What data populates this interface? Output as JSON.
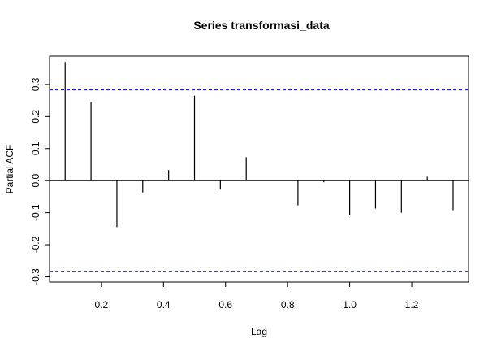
{
  "chart_data": {
    "type": "bar",
    "title": "Series  transformasi_data",
    "xlabel": "Lag",
    "ylabel": "Partial ACF",
    "xlim": [
      0.033,
      1.383
    ],
    "ylim": [
      -0.3165,
      0.3885
    ],
    "x_ticks": [
      0.2,
      0.4,
      0.6,
      0.8,
      1.0,
      1.2
    ],
    "x_tick_labels": [
      "0.2",
      "0.4",
      "0.6",
      "0.8",
      "1.0",
      "1.2"
    ],
    "y_ticks": [
      -0.3,
      -0.2,
      -0.1,
      0.0,
      0.1,
      0.2,
      0.3
    ],
    "y_tick_labels": [
      "-0.3",
      "-0.2",
      "-0.1",
      "0.0",
      "0.1",
      "0.2",
      "0.3"
    ],
    "confidence_bounds": [
      0.283,
      -0.283
    ],
    "confidence_color": "#0000cc",
    "grid": false,
    "lags": [
      0.0833,
      0.1667,
      0.25,
      0.3333,
      0.4167,
      0.5,
      0.5833,
      0.6667,
      0.75,
      0.8333,
      0.9167,
      1.0,
      1.0833,
      1.1667,
      1.25,
      1.3333
    ],
    "values": [
      0.37,
      0.245,
      -0.145,
      -0.037,
      0.033,
      0.265,
      -0.028,
      0.073,
      0.0,
      -0.077,
      -0.005,
      -0.108,
      -0.087,
      -0.1,
      0.012,
      -0.092
    ]
  }
}
